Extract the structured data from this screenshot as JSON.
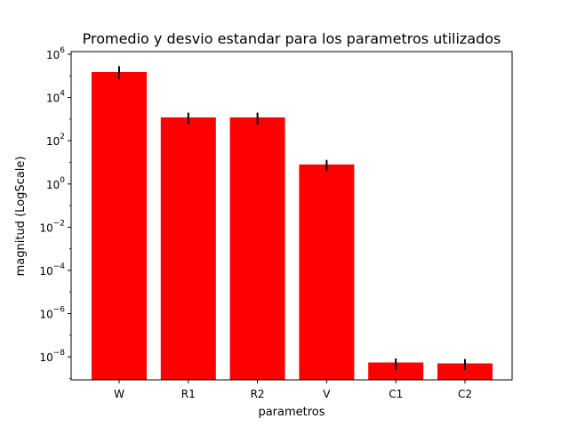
{
  "chart_data": {
    "type": "bar",
    "title": "Promedio y desvio estandar para los parametros utilizados",
    "xlabel": "parametros",
    "ylabel": "magnitud (LogScale)",
    "yscale": "log",
    "ylim": [
      4e-10,
      1000000.0
    ],
    "grid": false,
    "color": "#ff0000",
    "errorbar_color": "#000000",
    "yticks": [
      {
        "value": 1000000.0,
        "base": "10",
        "exp": "6"
      },
      {
        "value": 10000.0,
        "base": "10",
        "exp": "4"
      },
      {
        "value": 100.0,
        "base": "10",
        "exp": "2"
      },
      {
        "value": 1.0,
        "base": "10",
        "exp": "0"
      },
      {
        "value": 0.01,
        "base": "10",
        "exp": "−2"
      },
      {
        "value": 0.0001,
        "base": "10",
        "exp": "−4"
      },
      {
        "value": 1e-06,
        "base": "10",
        "exp": "−6"
      },
      {
        "value": 1e-08,
        "base": "10",
        "exp": "−8"
      }
    ],
    "categories": [
      "W",
      "R1",
      "R2",
      "V",
      "C1",
      "C2"
    ],
    "values": [
      150000,
      1200,
      1200,
      8,
      5.5e-09,
      5e-09
    ],
    "error_low": [
      70000,
      600,
      550,
      4,
      2.5e-09,
      2.5e-09
    ],
    "error_high": [
      280000,
      2000,
      2000,
      13,
      8.5e-09,
      8e-09
    ]
  }
}
